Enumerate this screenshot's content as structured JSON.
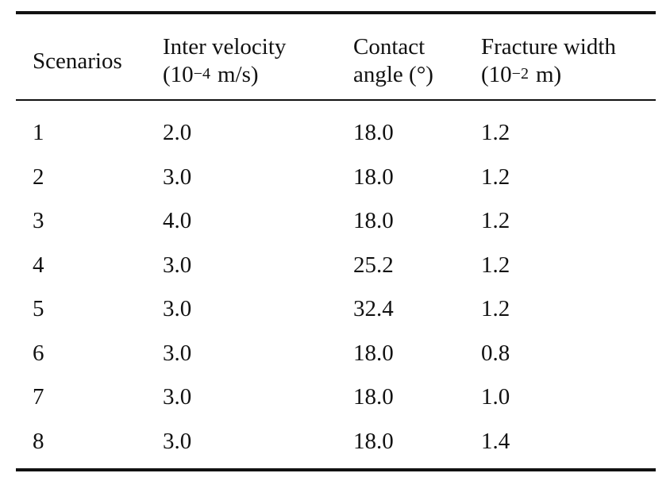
{
  "table": {
    "headers": {
      "scenarios": "Scenarios",
      "velocity": {
        "line1": "Inter velocity",
        "open": "(10",
        "exp": "−4",
        "unit": "m/s)"
      },
      "angle": {
        "line1": "Contact",
        "line2": "angle (°)"
      },
      "width": {
        "line1": "Fracture width",
        "open": "(10",
        "exp": "−2",
        "unit": "m)"
      }
    },
    "rows": [
      {
        "scenario": "1",
        "velocity": "2.0",
        "angle": "18.0",
        "width": "1.2"
      },
      {
        "scenario": "2",
        "velocity": "3.0",
        "angle": "18.0",
        "width": "1.2"
      },
      {
        "scenario": "3",
        "velocity": "4.0",
        "angle": "18.0",
        "width": "1.2"
      },
      {
        "scenario": "4",
        "velocity": "3.0",
        "angle": "25.2",
        "width": "1.2"
      },
      {
        "scenario": "5",
        "velocity": "3.0",
        "angle": "32.4",
        "width": "1.2"
      },
      {
        "scenario": "6",
        "velocity": "3.0",
        "angle": "18.0",
        "width": "0.8"
      },
      {
        "scenario": "7",
        "velocity": "3.0",
        "angle": "18.0",
        "width": "1.0"
      },
      {
        "scenario": "8",
        "velocity": "3.0",
        "angle": "18.0",
        "width": "1.4"
      }
    ]
  }
}
